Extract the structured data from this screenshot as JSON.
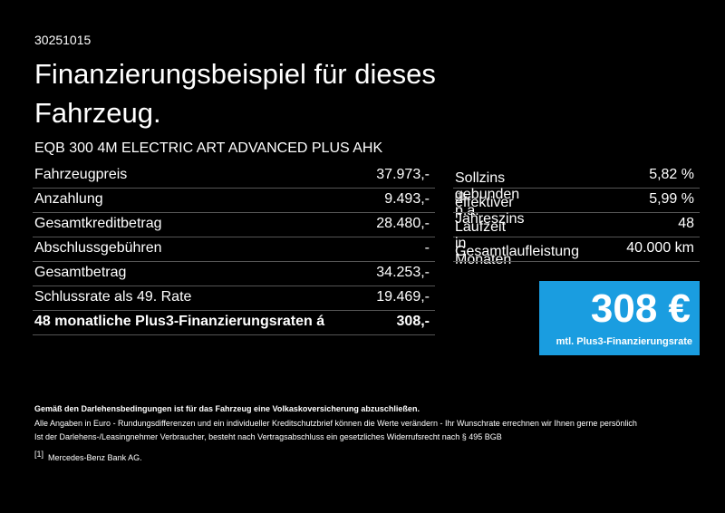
{
  "header": {
    "id": "30251015",
    "title": "Finanzierungsbeispiel für dieses Fahrzeug.",
    "model": "EQB 300 4M ELECTRIC ART ADVANCED PLUS AHK"
  },
  "left_table": {
    "rows": [
      [
        "Fahrzeugpreis",
        "37.973,-"
      ],
      [
        "Anzahlung",
        "9.493,-"
      ],
      [
        "Gesamtkreditbetrag",
        "28.480,-"
      ],
      [
        "Abschlussgebühren",
        "-"
      ],
      [
        "Gesamtbetrag",
        "34.253,-"
      ],
      [
        "Schlussrate als 49. Rate",
        "19.469,-"
      ],
      [
        "48 monatliche Plus3-Finanzierungsraten á",
        "308,-"
      ]
    ]
  },
  "right_table": {
    "rows": [
      {
        "label": "Sollzins gebunden p.a.",
        "note": null,
        "value": "5,82 %"
      },
      {
        "label": "effektiver Jahreszins",
        "note": "[1]",
        "value": "5,99 %"
      },
      {
        "label": "Laufzeit in Monaten",
        "note": null,
        "value": "48"
      },
      {
        "label": "Gesamtlaufleistung",
        "note": null,
        "value": "40.000 km"
      }
    ]
  },
  "highlight": {
    "amount": "308 €",
    "caption": "mtl. Plus3-Finanzierungsrate"
  },
  "footer": {
    "bold_note": "Gemäß den Darlehensbedingungen ist für das Fahrzeug eine Volkaskoversicherung abzuschließen.",
    "lines": [
      "Alle Angaben in Euro - Rundungsdifferenzen und ein individueller Kreditschutzbrief können die Werte verändern - Ihr Wunschrate errechnen wir Ihnen gerne persönlich",
      "Ist der Darlehens-/Leasingnehmer Verbraucher, besteht nach Vertragsabschluss ein gesetzliches Widerrufsrecht nach § 495 BGB"
    ],
    "footnote": {
      "marker": "[1]",
      "text": "Mercedes-Benz Bank AG."
    }
  }
}
